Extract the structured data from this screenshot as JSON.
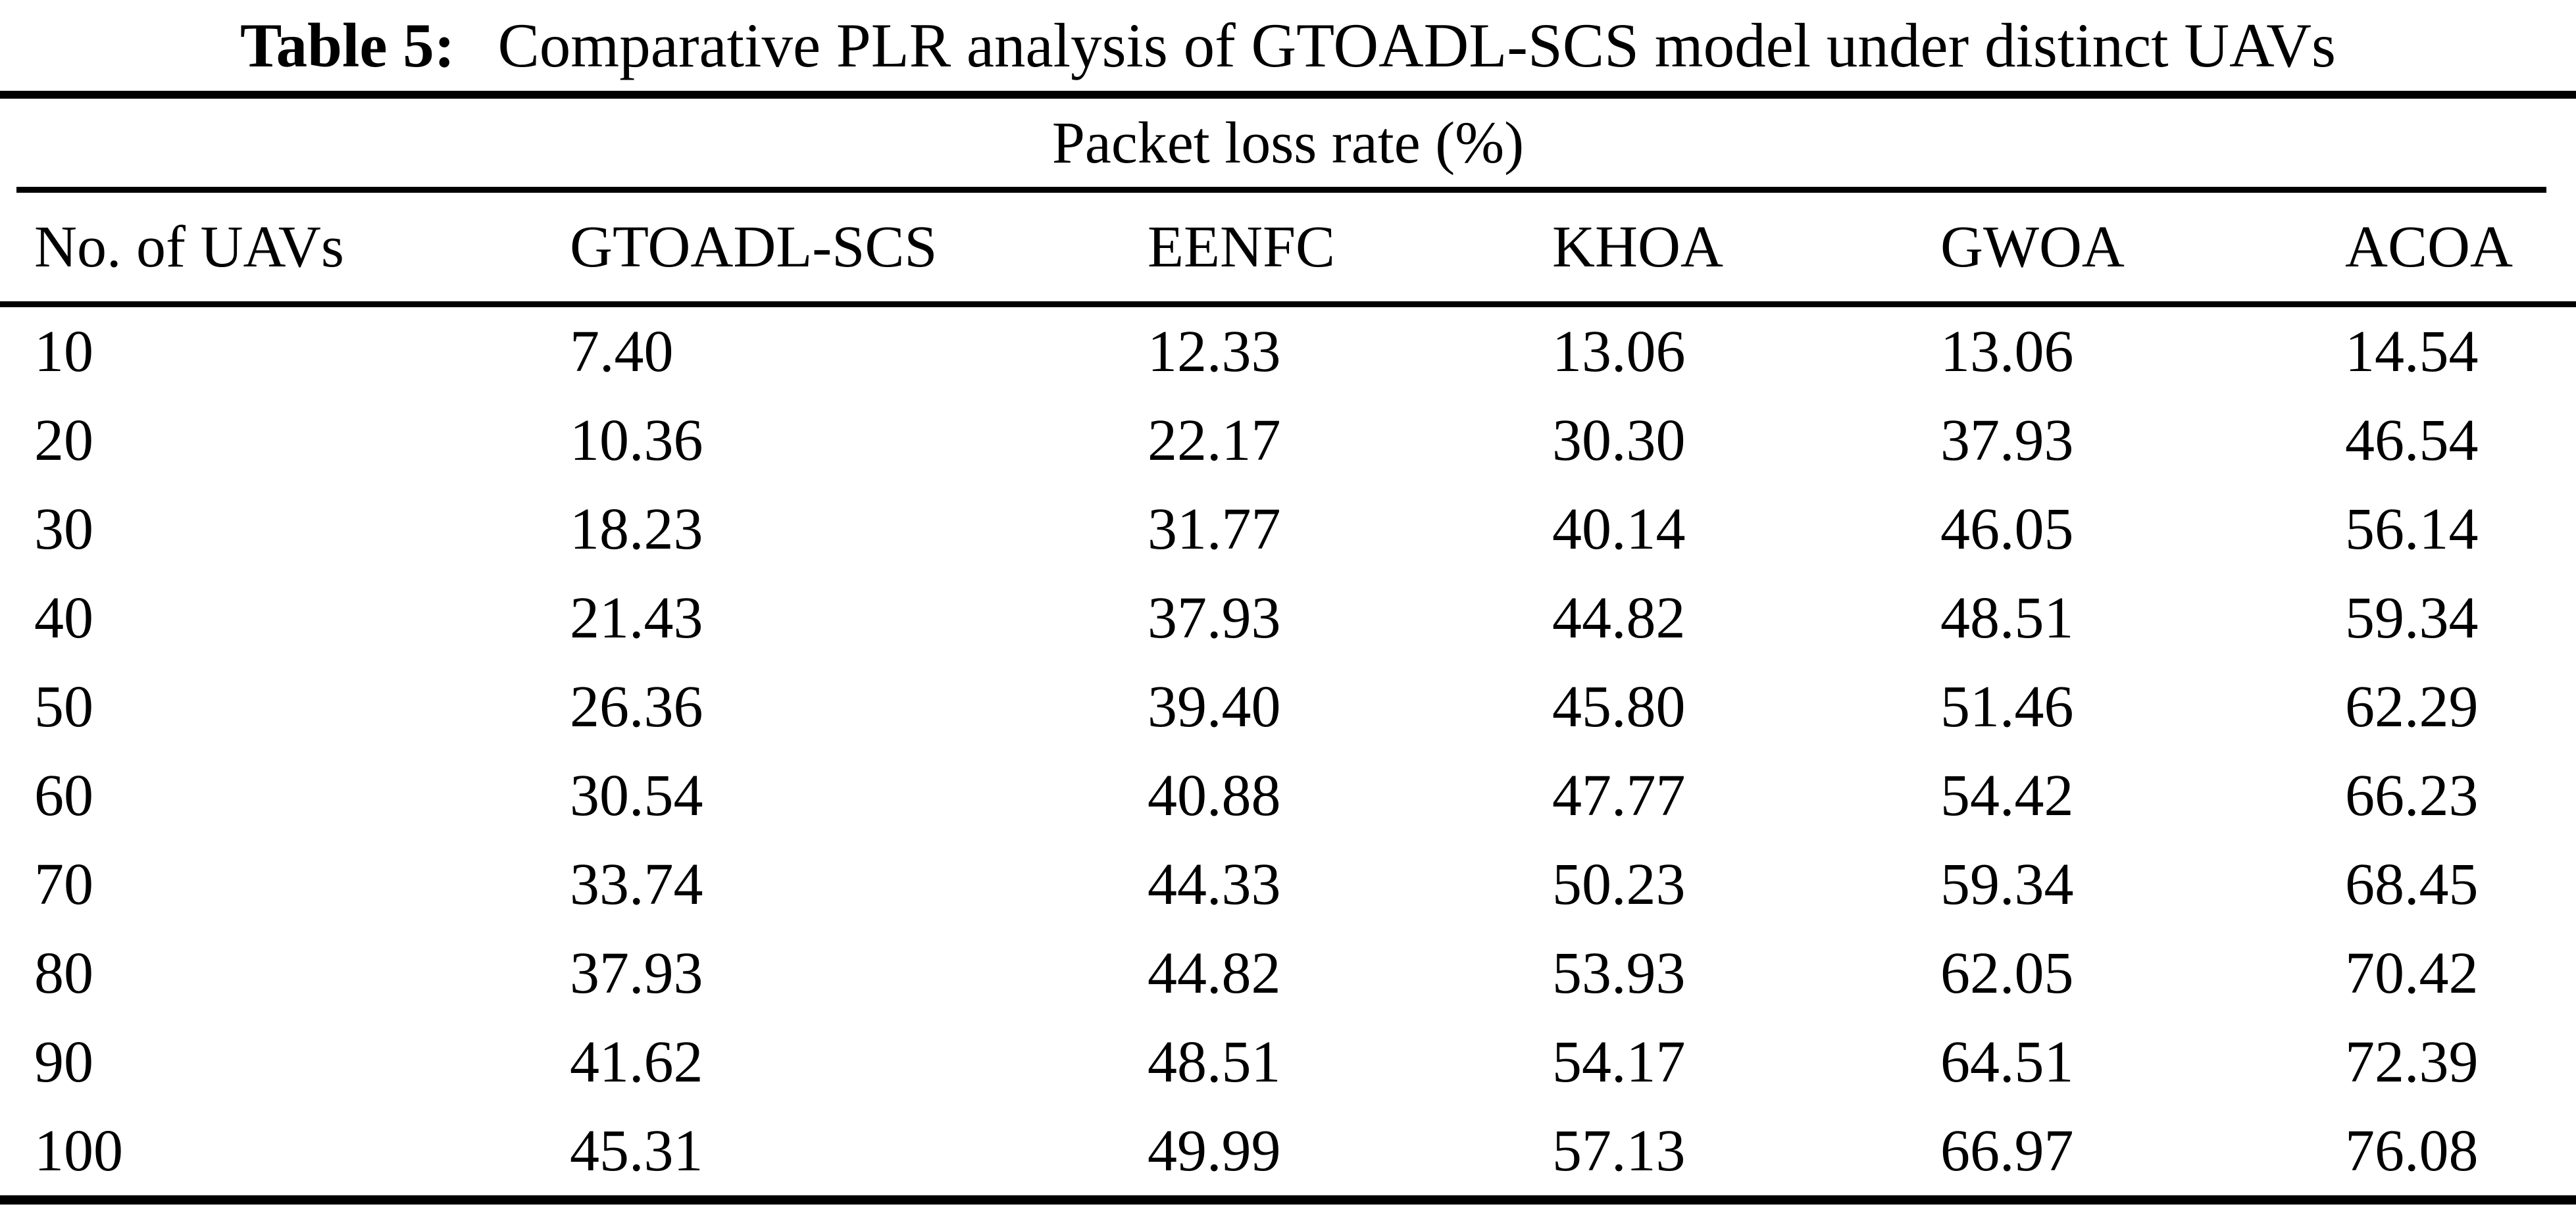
{
  "page": {
    "background": "#ffffff",
    "text_color": "#000000",
    "rule_color": "#000000"
  },
  "caption": {
    "label": "Table 5:",
    "text": "Comparative PLR analysis of GTOADL-SCS model under distinct UAVs"
  },
  "table": {
    "group_header": "Packet loss rate (%)",
    "columns": [
      "No. of UAVs",
      "GTOADL-SCS",
      "EENFC",
      "KHOA",
      "GWOA",
      "ACOA"
    ],
    "rows": [
      [
        "10",
        "7.40",
        "12.33",
        "13.06",
        "13.06",
        "14.54"
      ],
      [
        "20",
        "10.36",
        "22.17",
        "30.30",
        "37.93",
        "46.54"
      ],
      [
        "30",
        "18.23",
        "31.77",
        "40.14",
        "46.05",
        "56.14"
      ],
      [
        "40",
        "21.43",
        "37.93",
        "44.82",
        "48.51",
        "59.34"
      ],
      [
        "50",
        "26.36",
        "39.40",
        "45.80",
        "51.46",
        "62.29"
      ],
      [
        "60",
        "30.54",
        "40.88",
        "47.77",
        "54.42",
        "66.23"
      ],
      [
        "70",
        "33.74",
        "44.33",
        "50.23",
        "59.34",
        "68.45"
      ],
      [
        "80",
        "37.93",
        "44.82",
        "53.93",
        "62.05",
        "70.42"
      ],
      [
        "90",
        "41.62",
        "48.51",
        "54.17",
        "64.51",
        "72.39"
      ],
      [
        "100",
        "45.31",
        "49.99",
        "57.13",
        "66.97",
        "76.08"
      ]
    ]
  }
}
